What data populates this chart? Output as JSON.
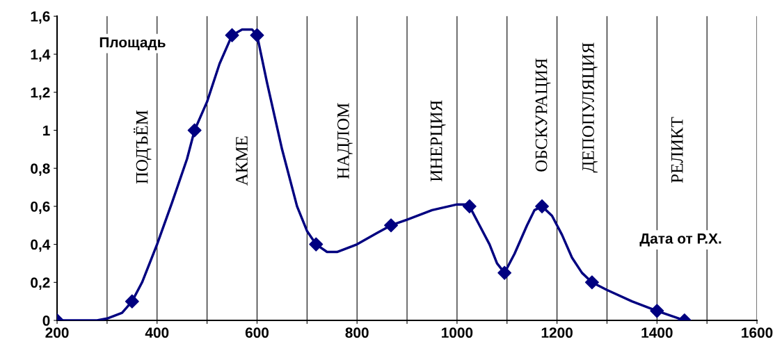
{
  "chart_data": {
    "type": "line",
    "xlim": [
      200,
      1600
    ],
    "ylim": [
      0,
      1.6
    ],
    "xticks": [
      200,
      {
        "value": 300,
        "label": null
      },
      400,
      {
        "value": 500,
        "label": null
      },
      600,
      {
        "value": 700,
        "label": null
      },
      800,
      {
        "value": 900,
        "label": null
      },
      1000,
      {
        "value": 1100,
        "label": null
      },
      1200,
      {
        "value": 1300,
        "label": null
      },
      1400,
      {
        "value": 1500,
        "label": null
      },
      1600
    ],
    "yticks": [
      0,
      {
        "value": 0.2,
        "label": "0,2"
      },
      {
        "value": 0.4,
        "label": "0,4"
      },
      {
        "value": 0.6,
        "label": "0,6"
      },
      {
        "value": 0.8,
        "label": "0,8"
      },
      1,
      {
        "value": 1.2,
        "label": "1,2"
      },
      {
        "value": 1.4,
        "label": "1,4"
      },
      {
        "value": 1.6,
        "label": "1,6"
      }
    ],
    "grid": "x",
    "legend": false,
    "series": [
      {
        "color": "#000080",
        "marker": "none",
        "x": [
          200,
          280,
          300,
          330,
          350,
          370,
          400,
          430,
          460,
          475,
          500,
          525,
          550,
          570,
          590,
          600,
          620,
          650,
          680,
          700,
          718,
          740,
          760,
          800,
          840,
          868,
          900,
          950,
          1000,
          1020,
          1025,
          1045,
          1065,
          1080,
          1095,
          1115,
          1140,
          1155,
          1170,
          1190,
          1210,
          1230,
          1250,
          1270,
          1300,
          1350,
          1400,
          1455
        ],
        "values": [
          0,
          0,
          0.01,
          0.04,
          0.1,
          0.2,
          0.4,
          0.62,
          0.85,
          1.0,
          1.15,
          1.35,
          1.5,
          1.53,
          1.53,
          1.5,
          1.25,
          0.9,
          0.6,
          0.47,
          0.4,
          0.36,
          0.36,
          0.4,
          0.46,
          0.5,
          0.53,
          0.58,
          0.61,
          0.61,
          0.6,
          0.5,
          0.4,
          0.3,
          0.25,
          0.35,
          0.5,
          0.58,
          0.6,
          0.55,
          0.45,
          0.33,
          0.25,
          0.2,
          0.16,
          0.1,
          0.05,
          0
        ]
      },
      {
        "type": "scatter",
        "color": "#000080",
        "marker": "diamond",
        "x": [
          200,
          350,
          475,
          550,
          600,
          718,
          868,
          1025,
          1095,
          1170,
          1270,
          1400,
          1455
        ],
        "values": [
          0,
          0.1,
          1.0,
          1.5,
          1.5,
          0.4,
          0.5,
          0.6,
          0.25,
          0.6,
          0.2,
          0.05,
          0
        ]
      }
    ],
    "annotations": [
      "Площадь",
      "Дата от Р.Х.",
      "ПОДЪЁМ",
      "АКМЕ",
      "НАДЛОМ",
      "ИНЕРЦИЯ",
      "ОБСКУРАЦИЯ",
      "ДЕПОПУЛЯЦИЯ",
      "РЕЛИКТ"
    ]
  }
}
